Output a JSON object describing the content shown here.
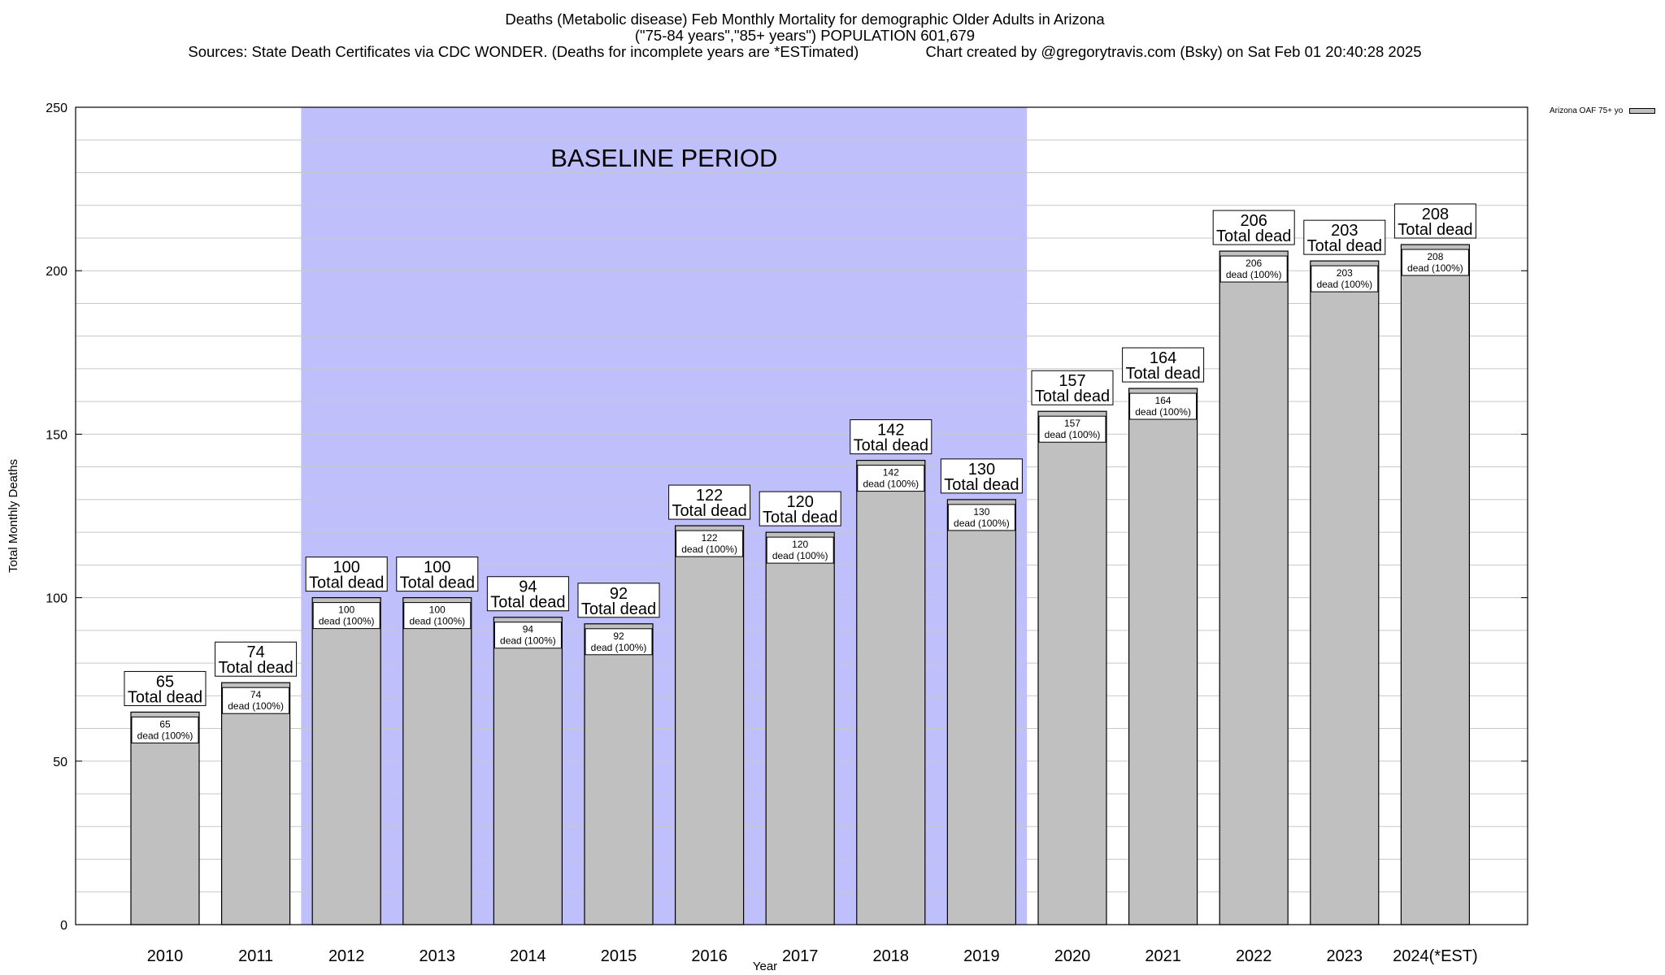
{
  "title": {
    "line1": "Deaths (Metabolic disease) Feb Monthly Mortality for demographic Older Adults in Arizona",
    "line2": "(\"75-84 years\",\"85+ years\") POPULATION 601,679",
    "line3": "Sources: State Death Certificates via CDC WONDER. (Deaths for incomplete years are *ESTimated)                Chart created by @gregorytravis.com (Bsky) on Sat Feb 01 20:40:28 2025"
  },
  "legend": {
    "label": "Arizona OAF 75+ yo",
    "color": "#c0c0c0"
  },
  "chart_data": {
    "type": "bar",
    "xlabel": "Year",
    "ylabel": "Total Monthly Deaths",
    "ylim": [
      0,
      250
    ],
    "yticks": [
      0,
      50,
      100,
      150,
      200,
      250
    ],
    "grid": true,
    "legend_position": "top-right",
    "categories": [
      "2010",
      "2011",
      "2012",
      "2013",
      "2014",
      "2015",
      "2016",
      "2017",
      "2018",
      "2019",
      "2020",
      "2021",
      "2022",
      "2023",
      "2024(*EST)"
    ],
    "series": [
      {
        "name": "Arizona OAF 75+ yo",
        "values": [
          65,
          74,
          100,
          100,
          94,
          92,
          122,
          120,
          142,
          130,
          157,
          164,
          206,
          203,
          208
        ],
        "color": "#c0c0c0"
      }
    ],
    "top_label_suffix": "Total dead",
    "inner_label_suffix": "dead (100%)",
    "baseline": {
      "label": "BASELINE PERIOD",
      "start": "2012",
      "end": "2019",
      "color": "#bfbffb"
    }
  }
}
